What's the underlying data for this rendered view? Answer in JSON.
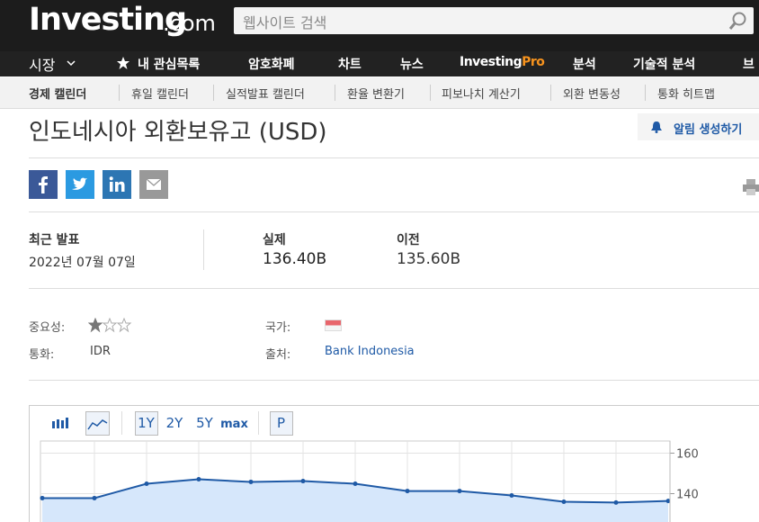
{
  "header": {
    "logo": "Investing",
    "logo_suffix": ".com",
    "search_placeholder": "웹사이트 검색"
  },
  "nav": [
    "시장",
    "내 관심목록",
    "암호화폐",
    "차트",
    "뉴스",
    {
      "text": "Investing",
      "accent": "Pro"
    },
    "분석",
    "기술적 분석",
    "브"
  ],
  "subnav": [
    "경제 캘린더",
    "휴일 캘린더",
    "실적발표 캘린더",
    "환율 변환기",
    "피보나치 계산기",
    "외환 변동성",
    "통화 히트맵"
  ],
  "page": {
    "title": "인도네시아 외환보유고 (USD)",
    "alert_button": "알림 생성하기",
    "latest_label": "최근 발표",
    "latest_date": "2022년 07월 07일",
    "actual_label": "실제",
    "actual_value": "136.40B",
    "previous_label": "이전",
    "previous_value": "135.60B",
    "importance_label": "중요성:",
    "importance": 1,
    "importance_max": 3,
    "country_label": "국가:",
    "currency_label": "통화:",
    "currency": "IDR",
    "source_label": "출처:",
    "source": "Bank Indonesia"
  },
  "chart": {
    "type": "area",
    "toolbar": [
      "1Y",
      "2Y",
      "5Y",
      "max",
      "P"
    ],
    "values": [
      137.8,
      137.8,
      144.9,
      147.1,
      145.8,
      146.2,
      144.9,
      141.3,
      141.3,
      139.1,
      136.0,
      135.6,
      136.4
    ],
    "ylim": [
      126,
      166
    ],
    "yticks": [
      160,
      140
    ],
    "color": "#1f5aa6",
    "fill": "#d6e7fb",
    "grid": true
  }
}
